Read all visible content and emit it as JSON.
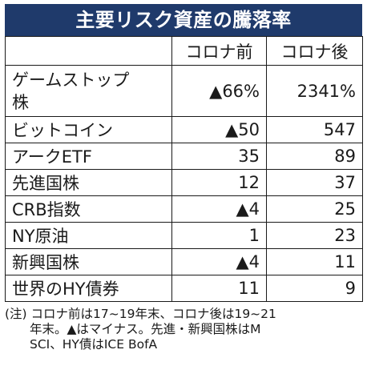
{
  "chart_data": {
    "type": "table",
    "title": "主要リスク資産の騰落率",
    "columns": [
      "",
      "コロナ前",
      "コロナ後"
    ],
    "rows": [
      {
        "label": "ゲームストップ株",
        "label_lines": [
          "ゲームストップ",
          "株"
        ],
        "pre": "▲66%",
        "post": "2341%",
        "pre_value": -66,
        "post_value": 2341
      },
      {
        "label": "ビットコイン",
        "pre": "▲50",
        "post": "547",
        "pre_value": -50,
        "post_value": 547
      },
      {
        "label": "アークETF",
        "pre": "35",
        "post": "89",
        "pre_value": 35,
        "post_value": 89
      },
      {
        "label": "先進国株",
        "pre": "12",
        "post": "37",
        "pre_value": 12,
        "post_value": 37
      },
      {
        "label": "CRB指数",
        "pre": "▲4",
        "post": "25",
        "pre_value": -4,
        "post_value": 25
      },
      {
        "label": "NY原油",
        "pre": "1",
        "post": "23",
        "pre_value": 1,
        "post_value": 23
      },
      {
        "label": "新興国株",
        "pre": "▲4",
        "post": "11",
        "pre_value": -4,
        "post_value": 11
      },
      {
        "label": "世界のHY債券",
        "pre": "11",
        "post": "9",
        "pre_value": 11,
        "post_value": 9
      }
    ],
    "note": "(注) コロナ前は17~19年末、コロナ後は19~21\n　　年末。▲はマイナス。先進・新興国株はM\n　　SCI、HY債はICE BofA"
  },
  "colors": {
    "title_bg": "#1f3a6b",
    "title_text": "#ffffff",
    "border": "#1a1a1a"
  }
}
